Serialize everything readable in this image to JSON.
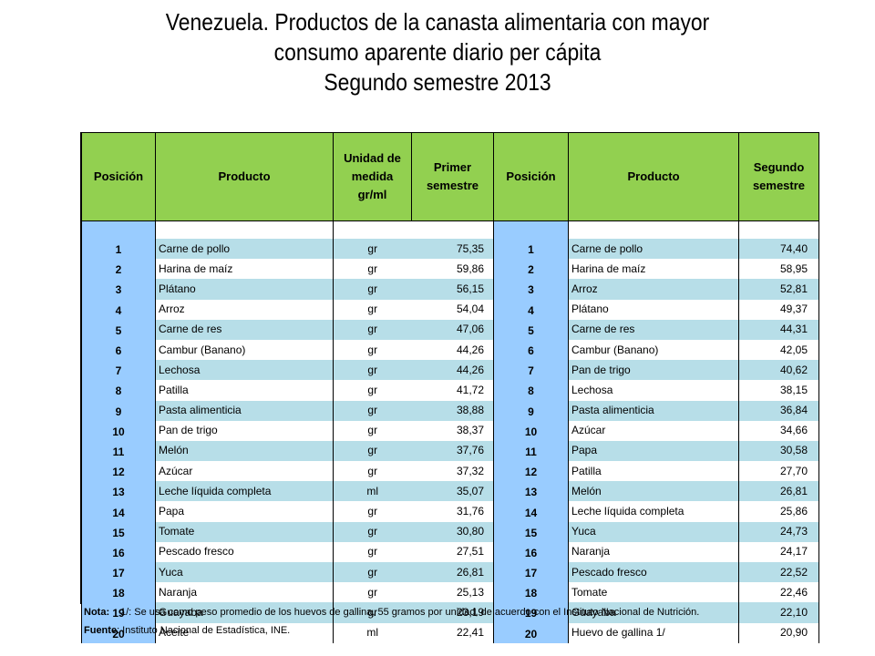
{
  "title": {
    "line1": "Venezuela. Productos de la canasta alimentaria con mayor",
    "line2": "consumo aparente diario per cápita",
    "line3": "Segundo semestre 2013"
  },
  "headers": {
    "posicion_1": "Posición",
    "producto_1": "Producto",
    "unidad": "Unidad de medida gr/ml",
    "primer": "Primer semestre",
    "posicion_2": "Posición",
    "producto_2": "Producto",
    "segundo": "Segundo semestre"
  },
  "rows": [
    {
      "pos1": "1",
      "prod1": "Carne de pollo",
      "unit": "gr",
      "val1": "75,35",
      "pos2": "1",
      "prod2": "Carne de pollo",
      "val2": "74,40"
    },
    {
      "pos1": "2",
      "prod1": "Harina de maíz",
      "unit": "gr",
      "val1": "59,86",
      "pos2": "2",
      "prod2": "Harina de maíz",
      "val2": "58,95"
    },
    {
      "pos1": "3",
      "prod1": "Plátano",
      "unit": "gr",
      "val1": "56,15",
      "pos2": "3",
      "prod2": "Arroz",
      "val2": "52,81"
    },
    {
      "pos1": "4",
      "prod1": "Arroz",
      "unit": "gr",
      "val1": "54,04",
      "pos2": "4",
      "prod2": "Plátano",
      "val2": "49,37"
    },
    {
      "pos1": "5",
      "prod1": "Carne de res",
      "unit": "gr",
      "val1": "47,06",
      "pos2": "5",
      "prod2": "Carne de res",
      "val2": "44,31"
    },
    {
      "pos1": "6",
      "prod1": "Cambur (Banano)",
      "unit": "gr",
      "val1": "44,26",
      "pos2": "6",
      "prod2": "Cambur (Banano)",
      "val2": "42,05"
    },
    {
      "pos1": "7",
      "prod1": "Lechosa",
      "unit": "gr",
      "val1": "44,26",
      "pos2": "7",
      "prod2": "Pan de trigo",
      "val2": "40,62"
    },
    {
      "pos1": "8",
      "prod1": "Patilla",
      "unit": "gr",
      "val1": "41,72",
      "pos2": "8",
      "prod2": "Lechosa",
      "val2": "38,15"
    },
    {
      "pos1": "9",
      "prod1": "Pasta alimenticia",
      "unit": "gr",
      "val1": "38,88",
      "pos2": "9",
      "prod2": "Pasta alimenticia",
      "val2": "36,84"
    },
    {
      "pos1": "10",
      "prod1": "Pan de trigo",
      "unit": "gr",
      "val1": "38,37",
      "pos2": "10",
      "prod2": "Azúcar",
      "val2": "34,66"
    },
    {
      "pos1": "11",
      "prod1": "Melón",
      "unit": "gr",
      "val1": "37,76",
      "pos2": "11",
      "prod2": "Papa",
      "val2": "30,58"
    },
    {
      "pos1": "12",
      "prod1": "Azúcar",
      "unit": "gr",
      "val1": "37,32",
      "pos2": "12",
      "prod2": "Patilla",
      "val2": "27,70"
    },
    {
      "pos1": "13",
      "prod1": "Leche líquida completa",
      "unit": "ml",
      "val1": "35,07",
      "pos2": "13",
      "prod2": "Melón",
      "val2": "26,81"
    },
    {
      "pos1": "14",
      "prod1": "Papa",
      "unit": "gr",
      "val1": "31,76",
      "pos2": "14",
      "prod2": "Leche líquida completa",
      "val2": "25,86"
    },
    {
      "pos1": "15",
      "prod1": "Tomate",
      "unit": "gr",
      "val1": "30,80",
      "pos2": "15",
      "prod2": "Yuca",
      "val2": "24,73"
    },
    {
      "pos1": "16",
      "prod1": "Pescado fresco",
      "unit": "gr",
      "val1": "27,51",
      "pos2": "16",
      "prod2": "Naranja",
      "val2": "24,17"
    },
    {
      "pos1": "17",
      "prod1": "Yuca",
      "unit": "gr",
      "val1": "26,81",
      "pos2": "17",
      "prod2": "Pescado fresco",
      "val2": "22,52"
    },
    {
      "pos1": "18",
      "prod1": "Naranja",
      "unit": "gr",
      "val1": "25,13",
      "pos2": "18",
      "prod2": "Tomate",
      "val2": "22,46"
    },
    {
      "pos1": "19",
      "prod1": "Guayaba",
      "unit": "gr",
      "val1": "23,19",
      "pos2": "19",
      "prod2": "Guayaba",
      "val2": "22,10"
    },
    {
      "pos1": "20",
      "prod1": "Aceite",
      "unit": "ml",
      "val1": "22,41",
      "pos2": "20",
      "prod2": "Huevo de gallina 1/",
      "val2": "20,90"
    }
  ],
  "note": {
    "label": "Nota:",
    "text": "1/: Se usa como peso promedio de los huevos de gallina, 55 gramos por unidad, de acuerdo con el Instituto Nacional de Nutrición."
  },
  "source": {
    "label": "Fuente",
    "text": ": Instituto Nacional de Estadística, INE."
  },
  "colors": {
    "header_green": "#92d050",
    "position_blue": "#99ccff",
    "row_shade": "#b7dee8"
  }
}
